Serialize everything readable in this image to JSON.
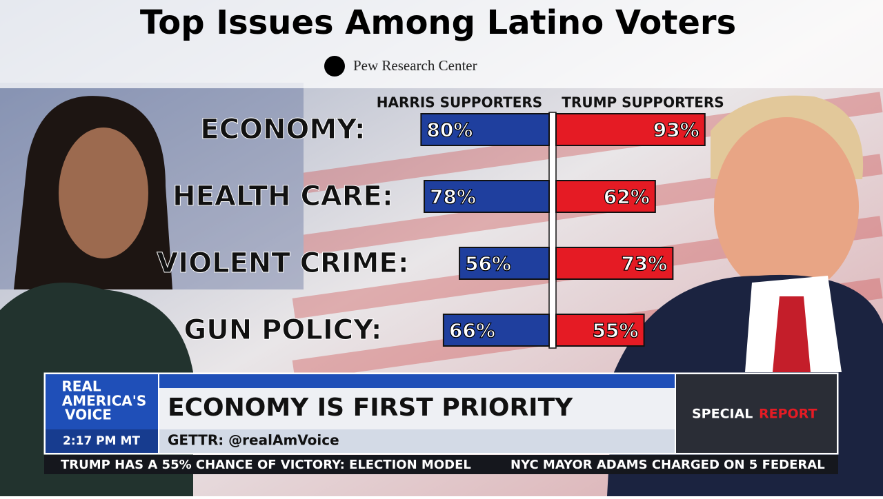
{
  "chart_data": {
    "type": "butterfly",
    "title": "Top Issues Among Latino Voters",
    "subtitle": "Pew Research Center",
    "categories": [
      "ECONOMY:",
      "HEALTH CARE:",
      "VIOLENT CRIME:",
      "GUN POLICY:"
    ],
    "series": [
      {
        "name": "HARRIS SUPPORTERS",
        "color": "#1f3f9e",
        "values": [
          80,
          78,
          56,
          66
        ],
        "value_labels": [
          "80%",
          "78%",
          "56%",
          "66%"
        ]
      },
      {
        "name": "TRUMP SUPPORTERS",
        "color": "#e51b24",
        "values": [
          93,
          62,
          73,
          55
        ],
        "value_labels": [
          "93%",
          "62%",
          "73%",
          "55%"
        ]
      }
    ]
  },
  "broadcast": {
    "logo": [
      "REAL",
      "AMERICA'S",
      "VOICE"
    ],
    "time": "2:17 PM MT",
    "headline": "ECONOMY IS FIRST PRIORITY",
    "social": "GETTR: @realAmVoice",
    "badge": [
      "SPECIAL",
      "REPORT"
    ],
    "ticker": [
      "TRUMP HAS A 55% CHANCE OF VICTORY: ELECTION MODEL",
      "NYC MAYOR ADAMS CHARGED ON 5 FEDERAL"
    ]
  }
}
